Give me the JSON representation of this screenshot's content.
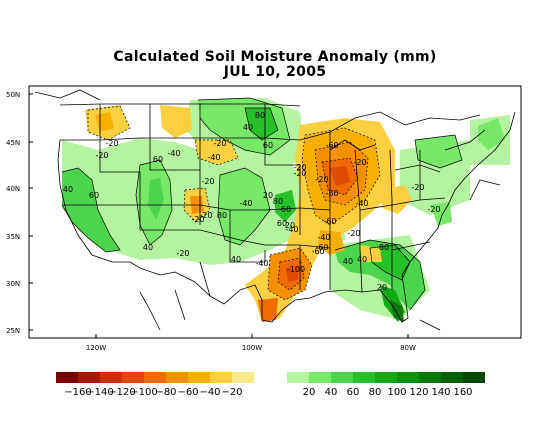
{
  "title": "Calculated Soil Moisture Anomaly (mm)",
  "date": "JUL 10, 2005",
  "lat_labels": [
    "50N",
    "45N",
    "40N",
    "35N",
    "30N",
    "25N"
  ],
  "lon_labels": [
    "120W",
    "100W",
    "80W"
  ],
  "colorbar": {
    "dry": [
      {
        "color": "#7a0000"
      },
      {
        "color": "#a81800"
      },
      {
        "color": "#c83000"
      },
      {
        "color": "#e04a00"
      },
      {
        "color": "#f06a00"
      },
      {
        "color": "#f59000"
      },
      {
        "color": "#f8b000"
      },
      {
        "color": "#fad040"
      },
      {
        "color": "#fbe88a"
      }
    ],
    "wet": [
      {
        "color": "#b4f4a0"
      },
      {
        "color": "#78e868"
      },
      {
        "color": "#4cd44c"
      },
      {
        "color": "#28c028"
      },
      {
        "color": "#14a814"
      },
      {
        "color": "#0a900a"
      },
      {
        "color": "#087808"
      },
      {
        "color": "#066006"
      },
      {
        "color": "#044804"
      }
    ],
    "labels": [
      "-160",
      "-140",
      "-120",
      "-100",
      "-80",
      "-60",
      "-40",
      "-20",
      "20",
      "40",
      "60",
      "80",
      "100",
      "120",
      "140",
      "160"
    ]
  },
  "contour_labels": [
    "-20",
    "-20",
    "-20",
    "-20",
    "-40",
    "-40",
    "-20",
    "-20",
    "-20",
    "-60",
    "-20",
    "-40",
    "-60",
    "-60",
    "-40",
    "-60",
    "-20",
    "-40",
    "-20",
    "-20",
    "-20",
    "-100",
    "-60",
    "-40",
    "-20",
    "-20",
    "-40",
    "60",
    "60",
    "60",
    "40",
    "20",
    "20",
    "40",
    "40",
    "40",
    "60",
    "60",
    "80",
    "80",
    "80",
    "40",
    "80",
    "40",
    "20"
  ]
}
